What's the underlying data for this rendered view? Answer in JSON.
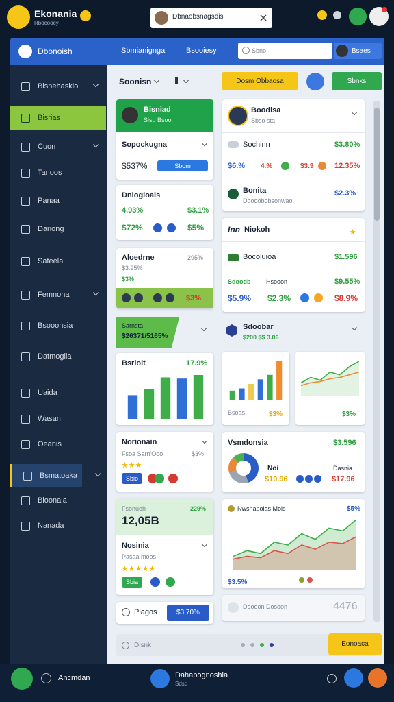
{
  "app": {
    "name": "Ekonania",
    "subtitle": "Rbocoocy"
  },
  "notification": "Dbnaobsnagsdis",
  "header": {
    "title": "Dbonoish",
    "tabs": [
      "Sbmianignga",
      "Bsooiesy"
    ],
    "search_placeholder": "Sbno",
    "button": "Bsaes"
  },
  "sidebar": {
    "items": [
      "Bisnehaskio",
      "Bisrias",
      "Cuon",
      "Tanoos",
      "Panaa",
      "Dariong",
      "Sateela",
      "Femnoha",
      "Bsooonsia",
      "Datmoglia",
      "Uaida",
      "Wasan",
      "Oeanis",
      "Bsmatoaka",
      "Bioonaia",
      "Nanada"
    ],
    "active_index": 1,
    "highlight_index": 13
  },
  "toolbar": {
    "filter": "Soonisn",
    "primary_button": "Dosm Obbaosa",
    "secondary_button": "Sbnks"
  },
  "profile_card": {
    "name": "Bisniad",
    "sub": "Sisu Bsoo",
    "row": "Sopockugna",
    "value": "$537%",
    "pill": "Sbom"
  },
  "stats_card": {
    "title": "Dniogioais",
    "values": [
      "4.93%",
      "$3.1%",
      "$72%",
      "$5%"
    ]
  },
  "alert_card": {
    "title": "Aloedrne",
    "right": "295%",
    "line1": "$3.95%",
    "line2": "$3%",
    "bar_value": "$3%"
  },
  "tag_card": {
    "title": "Sarnsta",
    "value": "$26371/5165%"
  },
  "trend_card": {
    "title": "Bsrioit",
    "value": "17.9%",
    "bars": {
      "type": "bar",
      "values": [
        20,
        25,
        35,
        34,
        37
      ],
      "colors": [
        "#2f6fd6",
        "#3fae49",
        "#3fae49",
        "#2f6fd6",
        "#3fae49"
      ]
    }
  },
  "rating_card": {
    "title": "Norionain",
    "sub": "Fsoa Sarn'Ooo",
    "right": "$3%",
    "pill": "Sbio"
  },
  "balance_card": {
    "label": "Fsonuoh",
    "value": "12,05B",
    "change": "229%",
    "title": "Nosinia",
    "sub": "Pasaa moos",
    "pill": "Sbia"
  },
  "plan_card": {
    "title": "Plagos",
    "button": "$3.70%"
  },
  "account_card": {
    "name": "Boodisa",
    "sub": "Sbso sta",
    "row1": "Sochinn",
    "row1_value": "$3.80%",
    "row2": [
      "$6.%",
      "4.%",
      "$3.9",
      "12.35%"
    ],
    "row3": "Bonita",
    "row3_sub": "Doooobobsonwao",
    "row3_value": "$2.3%"
  },
  "market_card": {
    "logo": "Inn",
    "title": "Niokoh",
    "row1": "Bocoluioa",
    "row1_value": "$1.596",
    "row2": [
      "Sdoodb",
      "Hsooon",
      "$9.55%"
    ],
    "row3": [
      "$5.9%",
      "$2.3%",
      "$8.9%"
    ]
  },
  "store_card": {
    "title": "Sdoobar",
    "sub": "$200 $$ 3.06"
  },
  "mini_bar_card": {
    "label": "Bsoas",
    "value": "$3%",
    "bars": {
      "type": "bar",
      "values": [
        8,
        10,
        14,
        18,
        22,
        34
      ],
      "colors": [
        "#3fae49",
        "#2f6fd6",
        "#f2c94c",
        "#2f6fd6",
        "#3fae49",
        "#f08c2e"
      ]
    }
  },
  "mini_line_card": {
    "value": "$3%",
    "chart": {
      "type": "line",
      "series": [
        {
          "color": "#3fae49",
          "values": [
            10,
            14,
            12,
            18,
            16,
            22,
            26
          ]
        },
        {
          "color": "#f08c2e",
          "values": [
            8,
            10,
            11,
            13,
            14,
            16,
            18
          ]
        }
      ]
    }
  },
  "donut_card": {
    "title": "Vsmdonsia",
    "value": "$3.596",
    "left_label": "Noi",
    "left_value": "$10.96",
    "right_label": "Dasnia",
    "right_value": "$17.96",
    "donut": {
      "type": "pie",
      "values": [
        45,
        25,
        18,
        12
      ],
      "colors": [
        "#2a5cc7",
        "#9aa5b1",
        "#e8893a",
        "#4caf50"
      ]
    }
  },
  "area_card": {
    "title": "Nwsnapolas Mols",
    "value": "$5%",
    "footer": "$3.5%",
    "chart": {
      "type": "area",
      "series": [
        {
          "color": "#3fae49",
          "values": [
            10,
            14,
            12,
            20,
            18,
            26,
            22,
            30,
            28,
            36
          ]
        },
        {
          "color": "#d9534f",
          "values": [
            8,
            10,
            9,
            14,
            12,
            18,
            15,
            20,
            19,
            24
          ]
        }
      ]
    }
  },
  "muted_card": {
    "title": "Deooon Dosoon",
    "value": "4476"
  },
  "footer": {
    "status": "Disnk",
    "action": "Eonoaca"
  },
  "bottom_bar": {
    "label": "Ancmdan",
    "user": "Dahabognoshia",
    "user_sub": "Sdsd"
  }
}
